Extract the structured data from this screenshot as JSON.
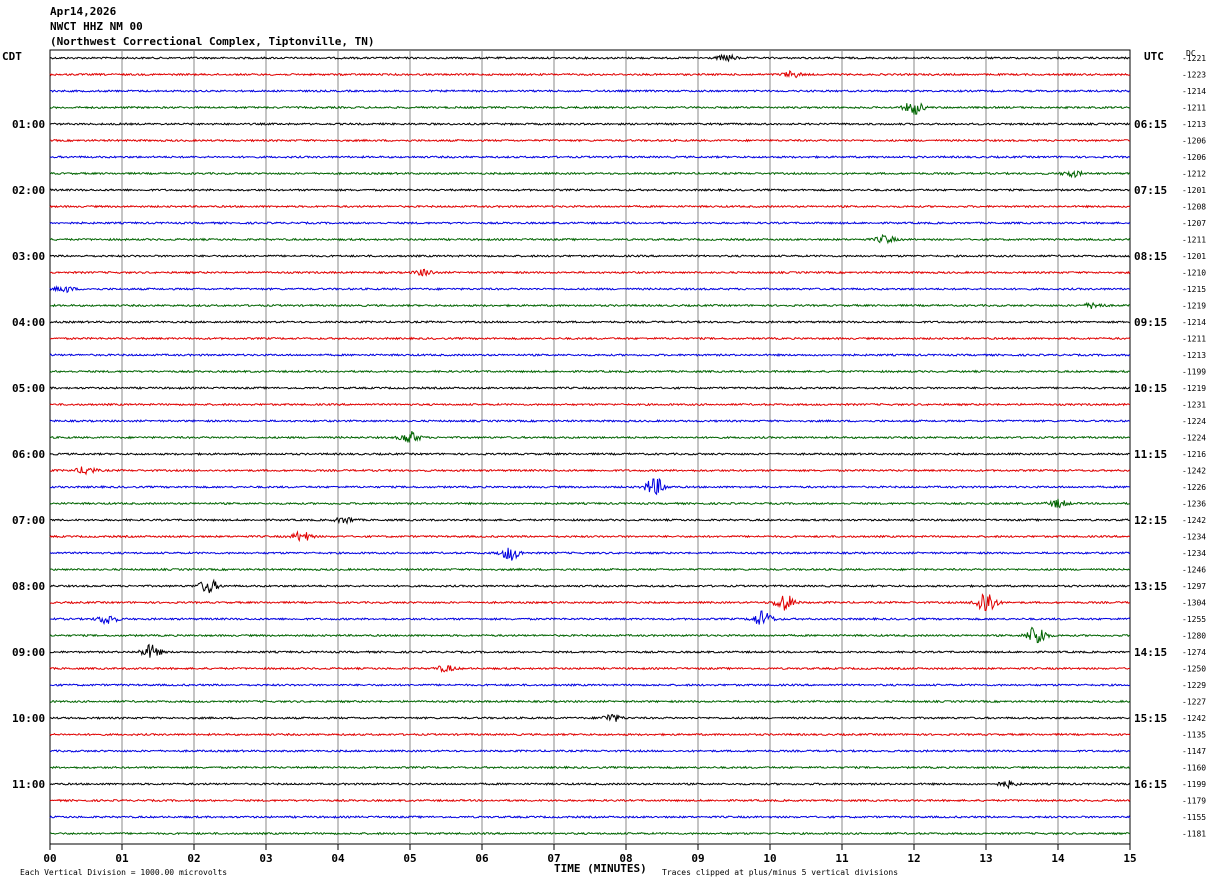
{
  "header": {
    "date": "Apr14,2026",
    "station": "NWCT HHZ NM 00",
    "location": "(Northwest Correctional Complex, Tiptonville, TN)"
  },
  "left_tz": "CDT",
  "right_tz": "UTC",
  "dc_header": "DC",
  "footer": {
    "scale_note": "Each Vertical Division = 1000.00 microvolts",
    "clip_note": "Traces clipped at plus/minus 5 vertical divisions"
  },
  "chart_data": {
    "type": "line",
    "xlabel": "TIME (MINUTES)",
    "xlim": [
      0,
      15
    ],
    "x_ticks": [
      "00",
      "01",
      "02",
      "03",
      "04",
      "05",
      "06",
      "07",
      "08",
      "09",
      "10",
      "11",
      "12",
      "13",
      "14",
      "15"
    ],
    "trace_colors": [
      "#000000",
      "#e00000",
      "#0000e0",
      "#006400"
    ],
    "left_time_labels": [
      "01:00",
      "02:00",
      "03:00",
      "04:00",
      "05:00",
      "06:00",
      "07:00",
      "08:00",
      "09:00",
      "10:00",
      "11:00"
    ],
    "right_time_labels": [
      "06:15",
      "07:15",
      "08:15",
      "09:15",
      "10:15",
      "11:15",
      "12:15",
      "13:15",
      "14:15",
      "15:15",
      "16:15"
    ],
    "dc_offsets": [
      -1221,
      -1223,
      -1214,
      -1211,
      -1213,
      -1206,
      -1206,
      -1212,
      -1201,
      -1208,
      -1207,
      -1211,
      -1201,
      -1210,
      -1215,
      -1219,
      -1214,
      -1211,
      -1213,
      -1199,
      -1219,
      -1231,
      -1224,
      -1224,
      -1216,
      -1242,
      -1226,
      -1236,
      -1242,
      -1234,
      -1234,
      -1246,
      -1297,
      -1304,
      -1255,
      -1280,
      -1274,
      -1250,
      -1229,
      -1227,
      -1242,
      -1135,
      -1147,
      -1160,
      -1199,
      -1179,
      -1155,
      -1181
    ],
    "events": [
      {
        "trace": 0,
        "minute": 9.4,
        "amp": 3
      },
      {
        "trace": 1,
        "minute": 10.3,
        "amp": 3
      },
      {
        "trace": 3,
        "minute": 12.0,
        "amp": 7
      },
      {
        "trace": 7,
        "minute": 14.2,
        "amp": 3
      },
      {
        "trace": 11,
        "minute": 11.6,
        "amp": 4
      },
      {
        "trace": 13,
        "minute": 5.2,
        "amp": 3
      },
      {
        "trace": 14,
        "minute": 0.2,
        "amp": 3
      },
      {
        "trace": 15,
        "minute": 14.5,
        "amp": 3
      },
      {
        "trace": 23,
        "minute": 5.0,
        "amp": 6
      },
      {
        "trace": 25,
        "minute": 0.5,
        "amp": 4
      },
      {
        "trace": 26,
        "minute": 8.4,
        "amp": 10
      },
      {
        "trace": 27,
        "minute": 14.0,
        "amp": 4
      },
      {
        "trace": 28,
        "minute": 4.1,
        "amp": 3
      },
      {
        "trace": 29,
        "minute": 3.5,
        "amp": 5
      },
      {
        "trace": 30,
        "minute": 6.4,
        "amp": 7
      },
      {
        "trace": 32,
        "minute": 2.2,
        "amp": 7
      },
      {
        "trace": 33,
        "minute": 10.2,
        "amp": 9
      },
      {
        "trace": 33,
        "minute": 13.0,
        "amp": 14
      },
      {
        "trace": 34,
        "minute": 9.9,
        "amp": 8
      },
      {
        "trace": 34,
        "minute": 0.8,
        "amp": 5
      },
      {
        "trace": 35,
        "minute": 13.7,
        "amp": 11
      },
      {
        "trace": 36,
        "minute": 1.4,
        "amp": 7
      },
      {
        "trace": 37,
        "minute": 5.5,
        "amp": 3
      },
      {
        "trace": 40,
        "minute": 7.8,
        "amp": 4
      },
      {
        "trace": 44,
        "minute": 13.3,
        "amp": 3
      }
    ]
  }
}
